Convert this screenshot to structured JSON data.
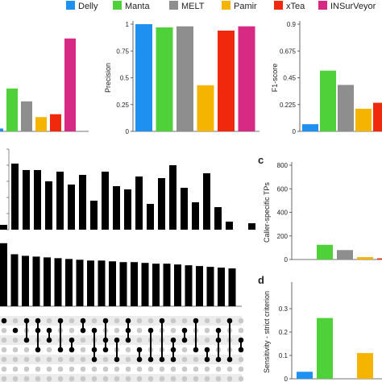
{
  "legend": [
    {
      "name": "Delly",
      "color": "#1e90ef"
    },
    {
      "name": "Manta",
      "color": "#4fd13a"
    },
    {
      "name": "MELT",
      "color": "#8e8e8e"
    },
    {
      "name": "Pamir",
      "color": "#f4b400"
    },
    {
      "name": "xTea",
      "color": "#f0280c"
    },
    {
      "name": "INSurVeyor",
      "color": "#d62a85"
    }
  ],
  "chart_data": [
    {
      "id": "sensitivity-partial",
      "type": "bar",
      "categories": [
        "Delly",
        "Manta",
        "MELT",
        "Pamir",
        "xTea",
        "INSurVeyor"
      ],
      "values": [
        0.02,
        0.3,
        0.21,
        0.1,
        0.12,
        0.65
      ],
      "ylim": [
        0,
        0.75
      ]
    },
    {
      "id": "precision",
      "type": "bar",
      "categories": [
        "Delly",
        "Manta",
        "MELT",
        "Pamir",
        "xTea",
        "INSurVeyor"
      ],
      "values": [
        1.0,
        0.97,
        0.98,
        0.43,
        0.94,
        0.98
      ],
      "ylabel": "Precision",
      "ylim": [
        0,
        1
      ],
      "yticks": [
        {
          "v": 0,
          "label": "0"
        },
        {
          "v": 0.25,
          "label": "0.25"
        },
        {
          "v": 0.5,
          "label": "0.5"
        },
        {
          "v": 0.75,
          "label": "0.75"
        },
        {
          "v": 1,
          "label": "1"
        }
      ]
    },
    {
      "id": "f1-score",
      "type": "bar",
      "categories": [
        "Delly",
        "Manta",
        "MELT",
        "Pamir",
        "xTea",
        "INSurVeyor"
      ],
      "values": [
        0.06,
        0.51,
        0.39,
        0.19,
        0.24,
        0.0
      ],
      "ylabel": "F1-score",
      "ylim": [
        0,
        0.9
      ],
      "yticks": [
        {
          "v": 0,
          "label": "0"
        },
        {
          "v": 0.225,
          "label": "0.225"
        },
        {
          "v": 0.45,
          "label": "0.45"
        },
        {
          "v": 0.675,
          "label": "0.675"
        },
        {
          "v": 0.9,
          "label": "0.9"
        }
      ]
    },
    {
      "id": "upset-intersections",
      "type": "bar",
      "values": [
        3,
        41,
        37,
        37,
        30,
        36,
        28,
        34,
        18,
        36,
        27,
        25,
        33,
        16,
        32,
        40,
        26,
        17,
        35,
        14,
        5,
        0,
        4
      ],
      "ylim": [
        0,
        50
      ]
    },
    {
      "id": "upset-set-sizes",
      "type": "bar",
      "values": [
        80,
        66,
        64,
        63,
        62,
        61,
        60,
        59,
        58,
        58,
        57,
        56,
        56,
        55,
        54,
        54,
        53,
        52,
        51,
        50,
        49,
        48
      ],
      "ylim": [
        0,
        90
      ]
    },
    {
      "id": "c",
      "label": "c",
      "type": "bar",
      "categories": [
        "Delly",
        "Manta",
        "MELT",
        "Pamir",
        "xTea",
        "INSurVeyor"
      ],
      "values": [
        0,
        125,
        80,
        20,
        10,
        0
      ],
      "ylabel": "Caller-specific TPs",
      "ylim": [
        0,
        800
      ],
      "yticks": [
        {
          "v": 0,
          "label": "0"
        },
        {
          "v": 200,
          "label": "200"
        },
        {
          "v": 400,
          "label": "400"
        },
        {
          "v": 600,
          "label": "600"
        },
        {
          "v": 800,
          "label": "800"
        }
      ]
    },
    {
      "id": "d",
      "label": "d",
      "type": "bar",
      "categories": [
        "Delly",
        "Manta",
        "MELT",
        "Pamir",
        "xTea",
        "INSurVeyor"
      ],
      "values": [
        0.03,
        0.26,
        0.0,
        0.11,
        0.0,
        0.0
      ],
      "ylabel": "Sensitivity - strict criterion",
      "ylim": [
        0,
        0.4
      ],
      "yticks": [
        {
          "v": 0,
          "label": "0"
        },
        {
          "v": 0.1,
          "label": "0.1"
        },
        {
          "v": 0.2,
          "label": "0.2"
        },
        {
          "v": 0.3,
          "label": "0.3"
        }
      ]
    }
  ]
}
